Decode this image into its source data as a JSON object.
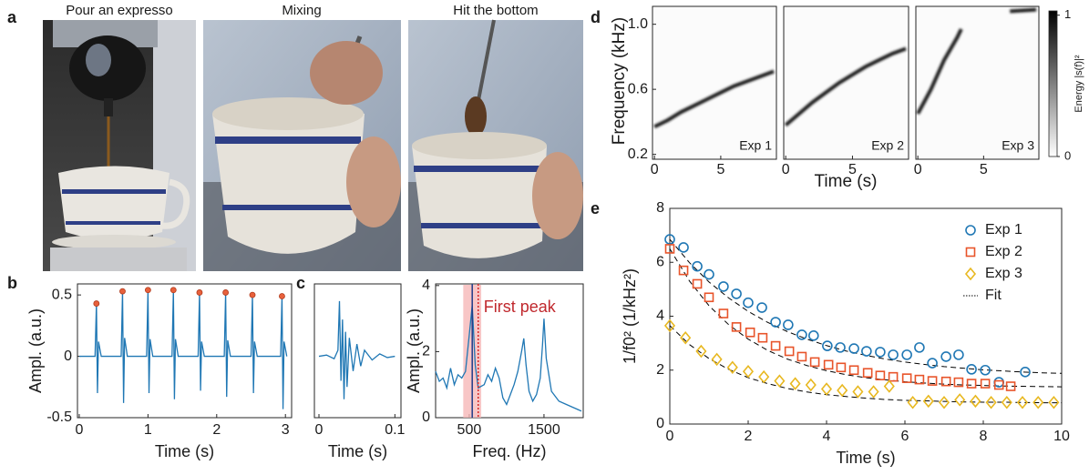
{
  "panel_a": {
    "label": "a",
    "captions": [
      "Pour an expresso",
      "Mixing",
      "Hit the bottom"
    ]
  },
  "chart_data": [
    {
      "type": "line",
      "panel": "b",
      "xlabel": "Time (s)",
      "ylabel": "Ampl. (a.u.)",
      "xlim": [
        -0.026,
        3.09
      ],
      "ylim": [
        -0.5,
        0.59
      ],
      "xticks": [
        0,
        1,
        2,
        3
      ],
      "yticks": [
        -0.5,
        0,
        0.5
      ],
      "series": [
        {
          "color": "#1f77b4",
          "x": [
            0,
            0.23,
            0.25,
            0.265,
            0.28,
            0.32,
            0.61,
            0.63,
            0.645,
            0.66,
            0.7,
            0.98,
            1.0,
            1.015,
            1.03,
            1.07,
            1.35,
            1.37,
            1.385,
            1.4,
            1.44,
            1.73,
            1.75,
            1.765,
            1.78,
            1.82,
            2.11,
            2.13,
            2.145,
            2.16,
            2.2,
            2.5,
            2.52,
            2.535,
            2.55,
            2.59,
            2.93,
            2.95,
            2.965,
            2.98,
            3.02
          ],
          "values": [
            0,
            0,
            0.43,
            -0.3,
            0.12,
            0,
            0,
            0.53,
            -0.38,
            0.15,
            0,
            0,
            0.54,
            -0.3,
            0.14,
            0,
            0,
            0.54,
            -0.35,
            0.14,
            0,
            0,
            0.52,
            -0.28,
            0.12,
            0,
            0,
            0.52,
            -0.33,
            0.13,
            0,
            0,
            0.5,
            -0.3,
            0.12,
            0,
            0,
            0.49,
            -0.43,
            0.12,
            0
          ]
        },
        {
          "color": "#e8613c",
          "marker": "circle",
          "x": [
            0.25,
            0.63,
            1.0,
            1.37,
            1.75,
            2.13,
            2.52,
            2.95
          ],
          "values": [
            0.43,
            0.53,
            0.54,
            0.54,
            0.52,
            0.52,
            0.5,
            0.49
          ]
        }
      ]
    },
    {
      "type": "line",
      "panel": "c",
      "xlabel": "Time (s)",
      "xlim": [
        -0.006,
        0.108
      ],
      "ylim": [
        -0.5,
        0.59
      ],
      "xticks": [
        0,
        0.1
      ],
      "series": [
        {
          "color": "#1f77b4",
          "x": [
            0,
            0.01,
            0.02,
            0.025,
            0.027,
            0.029,
            0.031,
            0.033,
            0.035,
            0.037,
            0.04,
            0.045,
            0.05,
            0.055,
            0.06,
            0.07,
            0.08,
            0.09,
            0.1
          ],
          "values": [
            0,
            0.01,
            -0.02,
            0.05,
            0.45,
            -0.2,
            0.3,
            -0.35,
            0.2,
            -0.25,
            0.15,
            -0.12,
            0.1,
            -0.08,
            0.05,
            -0.03,
            0.02,
            -0.01,
            0
          ]
        }
      ]
    },
    {
      "type": "line",
      "xlabel": "Freq. (Hz)",
      "ylabel": "Ampl. (a.u.)",
      "annotation": "First peak",
      "xlim": [
        50,
        2025
      ],
      "ylim": [
        0,
        4.05
      ],
      "xticks": [
        500,
        1500
      ],
      "yticks": [
        0,
        2,
        4
      ],
      "band": [
        420,
        660
      ],
      "band_color": "#f6b8b8",
      "vlines": [
        {
          "value": 540,
          "color": "#1f3b8a"
        },
        {
          "value": 620,
          "color": "#d62728"
        }
      ],
      "series": [
        {
          "color": "#1f77b4",
          "x": [
            50,
            100,
            150,
            200,
            250,
            300,
            350,
            400,
            450,
            500,
            540,
            580,
            620,
            700,
            750,
            800,
            850,
            900,
            950,
            1000,
            1050,
            1100,
            1150,
            1200,
            1230,
            1260,
            1300,
            1350,
            1400,
            1450,
            1480,
            1500,
            1530,
            1600,
            1700,
            1800,
            1900,
            2000
          ],
          "values": [
            1.4,
            1.1,
            1.2,
            0.9,
            1.5,
            1.0,
            1.3,
            1.2,
            1.4,
            2.5,
            3.4,
            1.6,
            0.9,
            1.0,
            1.3,
            1.1,
            1.5,
            1.2,
            0.6,
            0.4,
            0.7,
            1.0,
            1.4,
            2.0,
            2.4,
            1.6,
            0.8,
            0.5,
            0.7,
            1.2,
            2.2,
            3.0,
            1.8,
            0.8,
            0.5,
            0.4,
            0.3,
            0.2
          ]
        }
      ]
    },
    {
      "type": "heatmap",
      "panel": "d",
      "xlabel": "Time (s)",
      "ylabel": "Frequency (kHz)",
      "xlim": [
        -0.15,
        9.2
      ],
      "ylim": [
        0.17,
        1.11
      ],
      "xticks": [
        0,
        5
      ],
      "yticks": [
        0.2,
        0.6,
        {
          "value": 1,
          "label": "1.0"
        }
      ],
      "colorbar": {
        "label": "Energy |s(f)|²",
        "lim": [
          0,
          1.03
        ],
        "ticks": [
          0,
          1
        ]
      },
      "panels": [
        {
          "label": "Exp 1",
          "x": [
            0,
            1,
            2,
            3,
            4,
            5,
            6,
            7,
            8,
            9
          ],
          "values": [
            0.37,
            0.41,
            0.46,
            0.5,
            0.54,
            0.58,
            0.62,
            0.65,
            0.68,
            0.71
          ]
        },
        {
          "label": "Exp 2",
          "x": [
            0,
            1,
            2,
            3,
            4,
            5,
            6,
            7,
            8,
            9
          ],
          "values": [
            0.38,
            0.45,
            0.52,
            0.58,
            0.64,
            0.69,
            0.74,
            0.78,
            0.82,
            0.85
          ]
        },
        {
          "label": "Exp 3",
          "x": [
            0,
            1,
            2,
            3,
            3.3,
            5,
            7,
            9
          ],
          "values": [
            0.45,
            0.6,
            0.78,
            0.92,
            0.97,
            null,
            1.08,
            1.09
          ]
        }
      ]
    },
    {
      "type": "scatter",
      "panel": "e",
      "xlabel": "Time (s)",
      "ylabel": "1/f0² (1/kHz²)",
      "xlim": [
        0,
        10
      ],
      "ylim": [
        0,
        8
      ],
      "xticks": [
        0,
        2,
        4,
        6,
        8,
        10
      ],
      "yticks": [
        0,
        2,
        4,
        6,
        8
      ],
      "fit": {
        "name": "Fit",
        "color": "#000000",
        "x": [
          0,
          0.5,
          1,
          1.5,
          2,
          2.5,
          3,
          3.5,
          4,
          4.5,
          5,
          5.5,
          6,
          6.5,
          7,
          7.5,
          8,
          8.5,
          9,
          9.5,
          10
        ]
      },
      "series": [
        {
          "name": "Exp 1",
          "color": "#1f77b4",
          "marker": "circle",
          "x": [
            0,
            0.35,
            0.7,
            1.0,
            1.37,
            1.7,
            2.0,
            2.35,
            2.7,
            3.02,
            3.37,
            3.67,
            4.02,
            4.35,
            4.7,
            5.02,
            5.37,
            5.7,
            6.05,
            6.37,
            6.7,
            7.05,
            7.37,
            7.7,
            8.05,
            8.4,
            9.07
          ],
          "values": [
            6.85,
            6.55,
            5.85,
            5.55,
            5.1,
            4.83,
            4.5,
            4.32,
            3.78,
            3.68,
            3.31,
            3.28,
            2.9,
            2.84,
            2.8,
            2.7,
            2.67,
            2.57,
            2.57,
            2.84,
            2.26,
            2.5,
            2.57,
            2.03,
            2.0,
            1.55,
            1.93
          ],
          "fit_values": [
            6.85,
            5.99,
            5.27,
            4.68,
            4.18,
            3.77,
            3.43,
            3.15,
            2.91,
            2.71,
            2.55,
            2.41,
            2.3,
            2.21,
            2.13,
            2.07,
            2.01,
            1.97,
            1.93,
            1.9,
            1.88
          ]
        },
        {
          "name": "Exp 2",
          "color": "#e8542a",
          "marker": "square",
          "x": [
            0,
            0.35,
            0.7,
            1.0,
            1.37,
            1.7,
            2.05,
            2.37,
            2.7,
            3.05,
            3.37,
            3.7,
            4.05,
            4.37,
            4.7,
            5.05,
            5.37,
            5.7,
            6.05,
            6.37,
            6.7,
            7.05,
            7.37,
            7.7,
            8.05,
            8.4,
            8.7
          ],
          "values": [
            6.5,
            5.7,
            5.2,
            4.7,
            4.1,
            3.6,
            3.4,
            3.2,
            2.9,
            2.7,
            2.5,
            2.3,
            2.2,
            2.1,
            2.0,
            1.9,
            1.8,
            1.75,
            1.7,
            1.65,
            1.6,
            1.58,
            1.55,
            1.5,
            1.5,
            1.45,
            1.4
          ],
          "fit_values": [
            6.5,
            5.31,
            4.39,
            3.69,
            3.15,
            2.73,
            2.41,
            2.17,
            1.98,
            1.83,
            1.72,
            1.64,
            1.57,
            1.52,
            1.48,
            1.45,
            1.43,
            1.41,
            1.4,
            1.39,
            1.38
          ]
        },
        {
          "name": "Exp 3",
          "color": "#e8b820",
          "marker": "diamond",
          "x": [
            0,
            0.4,
            0.8,
            1.2,
            1.6,
            2.0,
            2.4,
            2.8,
            3.2,
            3.6,
            4.0,
            4.4,
            4.8,
            5.2,
            5.6,
            6.2,
            6.6,
            7.0,
            7.4,
            7.8,
            8.2,
            8.6,
            9.0,
            9.4,
            9.8
          ],
          "values": [
            3.65,
            3.2,
            2.7,
            2.4,
            2.1,
            1.95,
            1.75,
            1.6,
            1.5,
            1.45,
            1.3,
            1.25,
            1.2,
            1.2,
            1.4,
            0.8,
            0.85,
            0.8,
            0.9,
            0.85,
            0.8,
            0.8,
            0.8,
            0.8,
            0.8
          ],
          "fit_values": [
            3.65,
            2.95,
            2.43,
            2.03,
            1.72,
            1.5,
            1.32,
            1.19,
            1.09,
            1.02,
            0.96,
            0.91,
            0.88,
            0.86,
            0.84,
            0.82,
            0.81,
            0.81,
            0.8,
            0.79,
            0.79
          ]
        }
      ]
    }
  ]
}
